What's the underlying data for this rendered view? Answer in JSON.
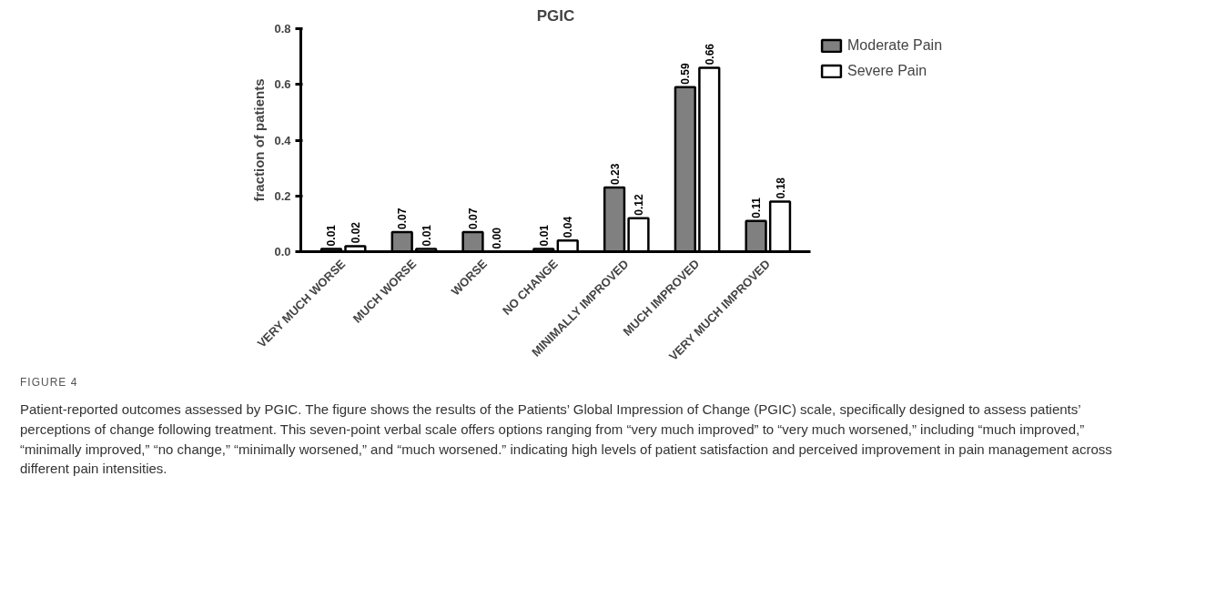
{
  "chart_data": {
    "type": "bar",
    "title": "PGIC",
    "ylabel": "fraction of patients",
    "categories": [
      "VERY MUCH WORSE",
      "MUCH WORSE",
      "WORSE",
      "NO CHANGE",
      "MINIMALLY IMPROVED",
      "MUCH IMPROVED",
      "VERY MUCH IMPROVED"
    ],
    "series": [
      {
        "name": "Moderate Pain",
        "color": "#808080",
        "values": [
          0.01,
          0.07,
          0.07,
          0.01,
          0.23,
          0.59,
          0.11
        ],
        "value_labels": [
          "0.01",
          "0.07",
          "0.07",
          "0.01",
          "0.23",
          "0.59",
          "0.11"
        ]
      },
      {
        "name": "Severe Pain",
        "color": "#ffffff",
        "values": [
          0.02,
          0.01,
          0.0,
          0.04,
          0.12,
          0.66,
          0.18
        ],
        "value_labels": [
          "0.02",
          "0.01",
          "0.00",
          "0.04",
          "0.12",
          "0.66",
          "0.18"
        ]
      }
    ],
    "ylim": [
      0,
      0.8
    ],
    "yticks": [
      {
        "value": 0,
        "label": "0.0"
      },
      {
        "value": 0.2,
        "label": "0.2"
      },
      {
        "value": 0.4,
        "label": "0.4"
      },
      {
        "value": 0.6,
        "label": "0.6"
      },
      {
        "value": 0.8,
        "label": "0.8"
      }
    ],
    "grid": false,
    "legend": "top right",
    "annotations": [
      "FIGURE 4",
      "Patient-reported outcomes assessed by PGIC. The figure shows the results of the Patients’ Global Impression of Change (PGIC) scale, specifically designed to assess patients’ perceptions of change following treatment. This seven-point verbal scale offers options ranging from “very much improved” to “very much worsened,” including “much improved,” “minimally improved,” “no change,” “minimally worsened,” and “much worsened.” indicating high levels of patient satisfaction and perceived improvement in pain management across different pain intensities."
    ]
  }
}
